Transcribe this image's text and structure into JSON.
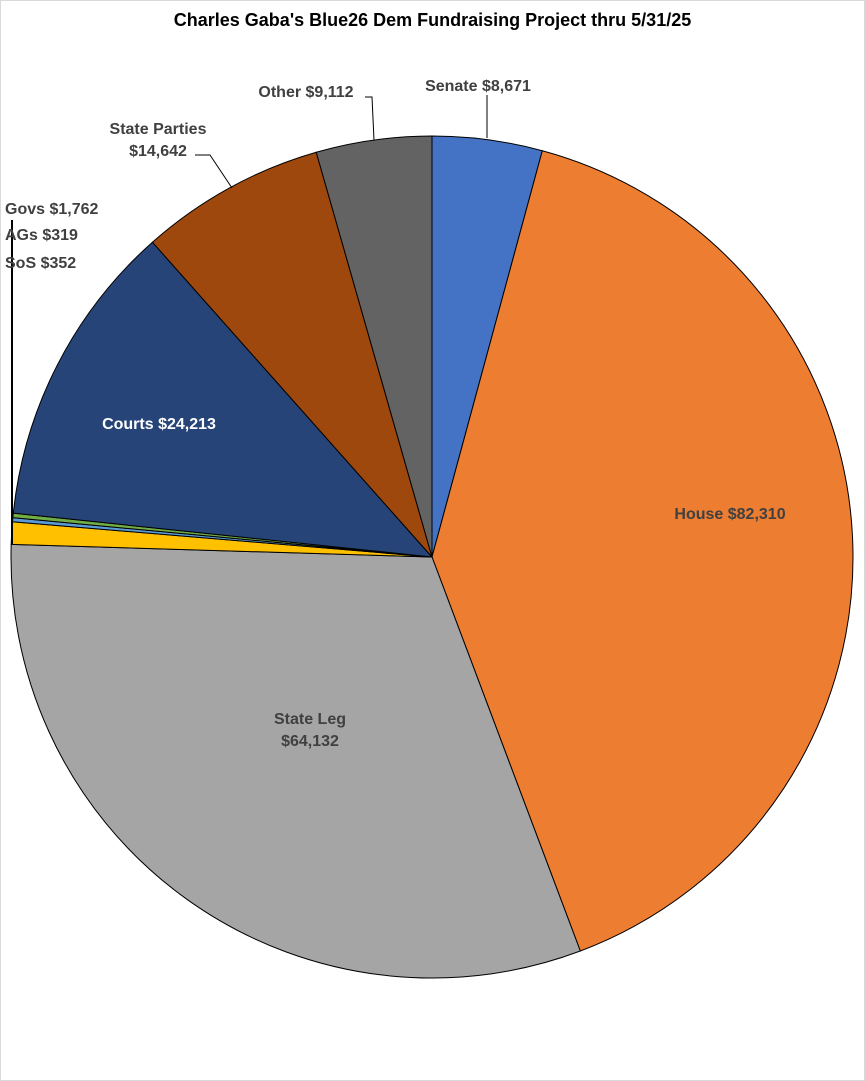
{
  "chart_data": {
    "type": "pie",
    "title": "Charles Gaba's Blue26 Dem Fundraising Project thru 5/31/25",
    "start_angle": "12 o'clock",
    "direction": "clockwise",
    "slices": [
      {
        "label": "Senate",
        "value": 8671,
        "display": "$8,671",
        "color": "#4472C4"
      },
      {
        "label": "House",
        "value": 82310,
        "display": "$82,310",
        "color": "#ED7D31"
      },
      {
        "label": "State Leg",
        "value": 64132,
        "display": "$64,132",
        "color": "#A5A5A5"
      },
      {
        "label": "Govs",
        "value": 1762,
        "display": "$1,762",
        "color": "#FFC000"
      },
      {
        "label": "AGs",
        "value": 319,
        "display": "$319",
        "color": "#5B9BD5"
      },
      {
        "label": "SoS",
        "value": 352,
        "display": "$352",
        "color": "#70AD47"
      },
      {
        "label": "Courts",
        "value": 24213,
        "display": "$24,213",
        "color": "#264478"
      },
      {
        "label": "State Parties",
        "value": 14642,
        "display": "$14,642",
        "color": "#9E480E"
      },
      {
        "label": "Other",
        "value": 9112,
        "display": "$9,112",
        "color": "#636363"
      }
    ]
  }
}
